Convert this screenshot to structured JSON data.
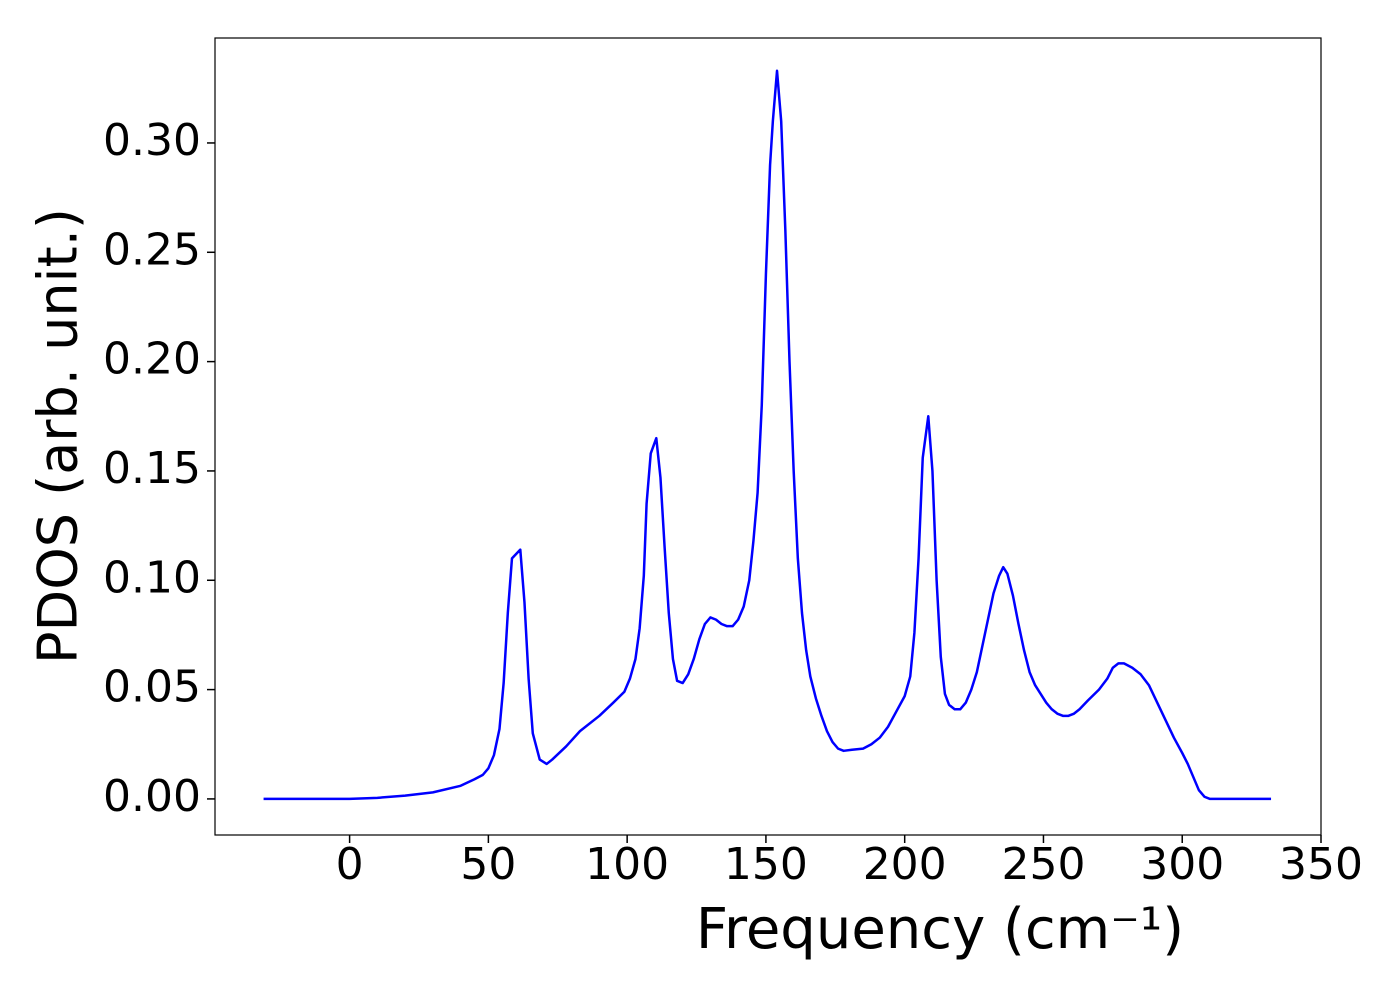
{
  "chart_data": {
    "type": "line",
    "xlabel": "Frequency (cm⁻¹)",
    "ylabel": "PDOS (arb. unit.)",
    "color": "#0000ff",
    "x": [
      -31,
      -10,
      0,
      10,
      20,
      30,
      40,
      45,
      48,
      50,
      52,
      54,
      55.5,
      57,
      58.5,
      61.5,
      63,
      64.5,
      66,
      68.5,
      71,
      73,
      78,
      83,
      90,
      95,
      99,
      101,
      103,
      104.5,
      106,
      107,
      108.5,
      110.5,
      112,
      113.5,
      115,
      116.5,
      118,
      120,
      122,
      124,
      126,
      128,
      130,
      132,
      134,
      136,
      138,
      140,
      142,
      144,
      145.5,
      147,
      148.5,
      150,
      151.5,
      152.5,
      154,
      155.5,
      157,
      158.5,
      160,
      161.5,
      163,
      164.5,
      166,
      168,
      170,
      172,
      174,
      176,
      178,
      181,
      185,
      188,
      191,
      194,
      197,
      200,
      202,
      203.5,
      205,
      206.5,
      208.5,
      210,
      211.5,
      213,
      214.5,
      216,
      218,
      220,
      222,
      224,
      226,
      228,
      230,
      232,
      234,
      235.5,
      237,
      239,
      241,
      243,
      245,
      247,
      249,
      251,
      253,
      255,
      257,
      259,
      261,
      263,
      266,
      270,
      273,
      275,
      277,
      279,
      282,
      285,
      288,
      291,
      294,
      297,
      300,
      302,
      304,
      306,
      308,
      310,
      320,
      332
    ],
    "values": [
      0,
      0,
      0,
      0.0005,
      0.0015,
      0.003,
      0.006,
      0.009,
      0.011,
      0.014,
      0.02,
      0.032,
      0.053,
      0.085,
      0.11,
      0.114,
      0.09,
      0.055,
      0.03,
      0.018,
      0.016,
      0.018,
      0.024,
      0.031,
      0.038,
      0.044,
      0.049,
      0.055,
      0.064,
      0.078,
      0.102,
      0.135,
      0.158,
      0.165,
      0.147,
      0.115,
      0.085,
      0.064,
      0.054,
      0.053,
      0.057,
      0.064,
      0.073,
      0.08,
      0.083,
      0.082,
      0.08,
      0.079,
      0.079,
      0.082,
      0.088,
      0.1,
      0.118,
      0.14,
      0.18,
      0.24,
      0.29,
      0.31,
      0.333,
      0.31,
      0.26,
      0.2,
      0.15,
      0.11,
      0.085,
      0.068,
      0.056,
      0.046,
      0.038,
      0.031,
      0.026,
      0.023,
      0.022,
      0.0225,
      0.023,
      0.025,
      0.028,
      0.033,
      0.04,
      0.047,
      0.056,
      0.076,
      0.11,
      0.156,
      0.175,
      0.15,
      0.1,
      0.065,
      0.048,
      0.043,
      0.041,
      0.041,
      0.044,
      0.05,
      0.058,
      0.07,
      0.082,
      0.094,
      0.102,
      0.106,
      0.103,
      0.093,
      0.08,
      0.068,
      0.058,
      0.052,
      0.048,
      0.044,
      0.041,
      0.039,
      0.038,
      0.038,
      0.039,
      0.041,
      0.045,
      0.05,
      0.055,
      0.06,
      0.062,
      0.062,
      0.06,
      0.057,
      0.052,
      0.044,
      0.036,
      0.028,
      0.021,
      0.016,
      0.01,
      0.004,
      0.001,
      0,
      0,
      0
    ],
    "xlim": [
      -48.5,
      350
    ],
    "xticks": [
      0,
      50,
      100,
      150,
      200,
      250,
      300,
      350
    ],
    "ylim": [
      -0.0165,
      0.348
    ],
    "yticks": [
      {
        "value": 0,
        "label": "0.00"
      },
      {
        "value": 0.05,
        "label": "0.05"
      },
      {
        "value": 0.1,
        "label": "0.10"
      },
      {
        "value": 0.15,
        "label": "0.15"
      },
      {
        "value": 0.2,
        "label": "0.20"
      },
      {
        "value": 0.25,
        "label": "0.25"
      },
      {
        "value": 0.3,
        "label": "0.30"
      }
    ]
  }
}
